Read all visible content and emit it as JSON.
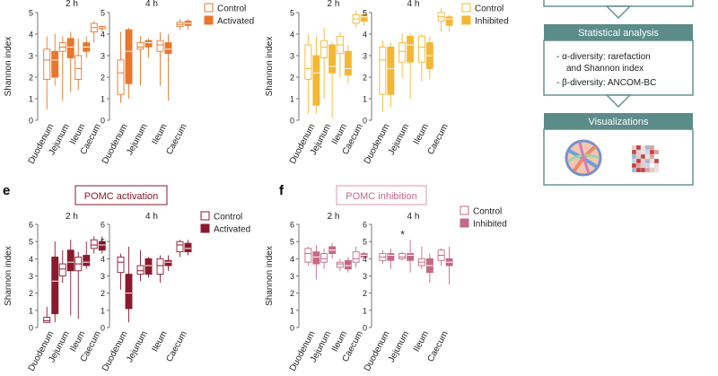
{
  "workflow": {
    "stats_header": "Statistical analysis",
    "stats_items": [
      "- α-diversity: rarefaction",
      "and Shannon index",
      "- β-diversity: ANCOM-BC"
    ],
    "viz_header": "Visualizations"
  },
  "panels": {
    "e": {
      "letter": "e",
      "title": "POMC activation"
    },
    "f": {
      "letter": "f",
      "title": "POMC inhibition"
    }
  },
  "chart_data": [
    {
      "id": "top-activated",
      "type": "box",
      "ylabel": "Shannon index",
      "ylim": [
        0,
        5
      ],
      "yticks": [
        0,
        1,
        2,
        3,
        4,
        5
      ],
      "timepoints": [
        "2 h",
        "4 h"
      ],
      "categories": [
        "Duodenum",
        "Jejunum",
        "Ileum",
        "Caecum"
      ],
      "legend": [
        "Control",
        "Activated"
      ],
      "colors": {
        "control": "#e8762c",
        "treated": "#e8762c"
      },
      "boxes": {
        "2 h": {
          "control": [
            [
              0.5,
              1.9,
              2.8,
              3.3,
              3.9
            ],
            [
              0.9,
              3.2,
              3.4,
              3.6,
              3.9
            ],
            [
              1.4,
              1.9,
              2.4,
              3.0,
              3.8
            ],
            [
              3.6,
              4.1,
              4.3,
              4.5,
              4.6
            ]
          ],
          "treated": [
            [
              1.6,
              2.0,
              2.8,
              3.2,
              4.0
            ],
            [
              1.3,
              2.9,
              3.4,
              3.8,
              4.1
            ],
            [
              2.9,
              3.2,
              3.4,
              3.6,
              3.9
            ],
            [
              4.1,
              4.25,
              4.3,
              4.35,
              4.4
            ]
          ]
        },
        "4 h": {
          "control": [
            [
              0.8,
              1.2,
              2.2,
              2.8,
              4.1
            ],
            [
              1.6,
              3.3,
              3.4,
              3.6,
              3.9
            ],
            [
              1.6,
              3.2,
              3.5,
              3.7,
              4.1
            ],
            [
              4.2,
              4.35,
              4.45,
              4.55,
              4.7
            ]
          ],
          "treated": [
            [
              1.0,
              1.7,
              3.2,
              4.2,
              4.3
            ],
            [
              2.9,
              3.4,
              3.6,
              3.7,
              3.8
            ],
            [
              0.9,
              3.1,
              3.3,
              3.6,
              4.0
            ],
            [
              4.2,
              4.4,
              4.5,
              4.6,
              4.7
            ]
          ]
        }
      }
    },
    {
      "id": "top-inhibited",
      "type": "box",
      "ylabel": "Shannon index",
      "ylim": [
        0,
        5
      ],
      "yticks": [
        0,
        1,
        2,
        3,
        4,
        5
      ],
      "timepoints": [
        "2 h",
        "4 h"
      ],
      "categories": [
        "Duodenum",
        "Jejunum",
        "Ileum",
        "Caecum"
      ],
      "legend": [
        "Control",
        "Inhibited"
      ],
      "colors": {
        "control": "#f2b734",
        "treated": "#f2b734"
      },
      "boxes": {
        "2 h": {
          "control": [
            [
              0.3,
              1.9,
              2.4,
              3.5,
              4.0
            ],
            [
              1.0,
              2.9,
              3.4,
              3.7,
              4.3
            ],
            [
              2.0,
              3.1,
              3.5,
              3.9,
              4.1
            ],
            [
              4.3,
              4.5,
              4.7,
              4.9,
              5.1
            ]
          ],
          "treated": [
            [
              0.3,
              0.7,
              2.2,
              3.0,
              3.9
            ],
            [
              0.1,
              2.2,
              2.5,
              3.5,
              3.6
            ],
            [
              1.7,
              2.1,
              2.4,
              3.2,
              3.5
            ],
            [
              4.4,
              4.6,
              4.8,
              4.9,
              5.1
            ]
          ]
        },
        "4 h": {
          "control": [
            [
              0.4,
              1.2,
              2.8,
              3.4,
              3.7
            ],
            [
              2.0,
              2.7,
              3.2,
              3.6,
              4.0
            ],
            [
              1.8,
              2.7,
              3.4,
              3.9,
              4.0
            ],
            [
              4.1,
              4.6,
              4.8,
              5.0,
              5.2
            ]
          ],
          "treated": [
            [
              0.6,
              1.2,
              2.4,
              3.4,
              3.6
            ],
            [
              1.0,
              2.7,
              3.5,
              3.9,
              4.0
            ],
            [
              1.9,
              2.4,
              3.0,
              3.6,
              3.9
            ],
            [
              4.1,
              4.4,
              4.7,
              4.8,
              4.9
            ]
          ]
        }
      }
    },
    {
      "id": "e-activation",
      "type": "box",
      "ylabel": "Shannon index",
      "ylim": [
        0,
        6
      ],
      "yticks": [
        0,
        1,
        2,
        3,
        4,
        5,
        6
      ],
      "timepoints": [
        "2 h",
        "4 h"
      ],
      "categories": [
        "Duodenum",
        "Jejunum",
        "Ileum",
        "Caecum"
      ],
      "legend": [
        "Control",
        "Activated"
      ],
      "colors": {
        "control": "#8b1a2f",
        "treated": "#8b1a2f"
      },
      "boxes": {
        "2 h": {
          "control": [
            [
              0.3,
              0.3,
              0.4,
              0.6,
              1.2
            ],
            [
              2.6,
              3.0,
              3.4,
              3.7,
              4.5
            ],
            [
              0.5,
              3.3,
              3.7,
              4.1,
              4.4
            ],
            [
              4.3,
              4.6,
              4.8,
              5.1,
              5.3
            ]
          ],
          "treated": [
            [
              0.3,
              0.8,
              2.7,
              4.1,
              5.0
            ],
            [
              0.7,
              3.3,
              3.8,
              4.5,
              5.1
            ],
            [
              3.4,
              3.6,
              3.8,
              4.2,
              5.0
            ],
            [
              4.3,
              4.5,
              4.8,
              5.0,
              5.3
            ]
          ]
        },
        "4 h": {
          "control": [
            [
              2.2,
              3.2,
              3.8,
              4.1,
              4.3
            ],
            [
              2.7,
              3.1,
              3.3,
              3.6,
              4.5
            ],
            [
              2.6,
              3.1,
              3.6,
              4.0,
              4.2
            ],
            [
              4.1,
              4.4,
              4.8,
              5.0,
              5.1
            ]
          ],
          "treated": [
            [
              0.3,
              1.1,
              2.0,
              3.1,
              4.7
            ],
            [
              2.9,
              3.1,
              3.6,
              4.0,
              4.1
            ],
            [
              3.3,
              3.6,
              3.8,
              3.9,
              4.2
            ],
            [
              4.2,
              4.4,
              4.6,
              4.9,
              5.1
            ]
          ]
        }
      }
    },
    {
      "id": "f-inhibition",
      "type": "box",
      "ylabel": "Shannon index",
      "ylim": [
        0,
        6
      ],
      "yticks": [
        0,
        1,
        2,
        3,
        4,
        5,
        6
      ],
      "timepoints": [
        "2 h",
        "4 h"
      ],
      "categories": [
        "Duodenum",
        "Jejunum",
        "Ileum",
        "Caecum"
      ],
      "legend": [
        "Control",
        "Inhibited"
      ],
      "colors": {
        "control": "#c46a84",
        "treated": "#c46a84"
      },
      "annotation": {
        "text": "*",
        "timepoint": "4 h",
        "category": "Jejunum"
      },
      "boxes": {
        "2 h": {
          "control": [
            [
              3.6,
              3.8,
              4.3,
              4.6,
              4.7
            ],
            [
              3.4,
              3.8,
              4.0,
              4.3,
              4.6
            ],
            [
              3.3,
              3.5,
              3.7,
              3.8,
              4.0
            ],
            [
              3.5,
              3.8,
              4.0,
              4.4,
              4.7
            ]
          ],
          "treated": [
            [
              2.8,
              3.7,
              4.1,
              4.4,
              4.8
            ],
            [
              4.0,
              4.3,
              4.5,
              4.7,
              4.9
            ],
            [
              3.2,
              3.4,
              3.6,
              3.9,
              4.1
            ],
            [
              4.0,
              4.1,
              4.2,
              4.3,
              4.4
            ]
          ]
        },
        "4 h": {
          "control": [
            [
              3.7,
              3.9,
              4.1,
              4.3,
              4.5
            ],
            [
              3.9,
              4.0,
              4.1,
              4.3,
              4.4
            ],
            [
              3.4,
              3.6,
              3.8,
              4.0,
              4.7
            ],
            [
              3.6,
              3.9,
              4.2,
              4.5,
              4.6
            ]
          ],
          "treated": [
            [
              3.4,
              3.9,
              4.2,
              4.3,
              4.6
            ],
            [
              3.2,
              3.9,
              4.2,
              4.3,
              5.1
            ],
            [
              2.6,
              3.2,
              3.6,
              4.0,
              4.3
            ],
            [
              2.5,
              3.6,
              3.8,
              4.0,
              4.7
            ]
          ]
        }
      }
    }
  ]
}
